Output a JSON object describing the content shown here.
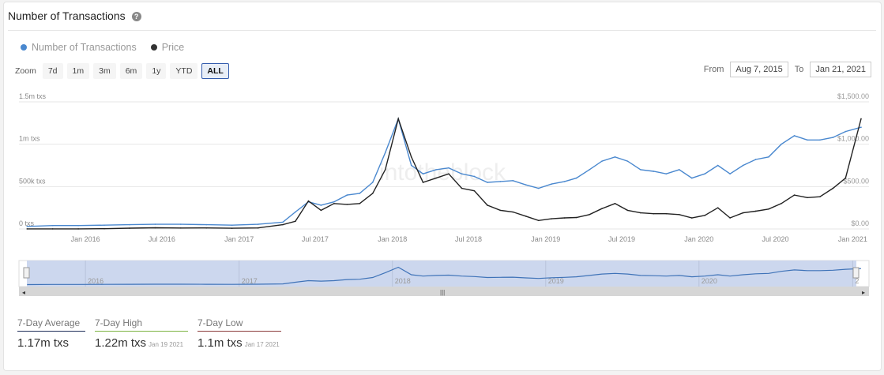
{
  "header": {
    "title": "Number of Transactions",
    "help_icon": "question-circle-icon"
  },
  "controls": {
    "zoom_label": "Zoom",
    "zoom_buttons": [
      "7d",
      "1m",
      "3m",
      "6m",
      "1y",
      "YTD",
      "ALL"
    ],
    "active_zoom": "ALL",
    "from_label": "From",
    "from_value": "Aug 7, 2015",
    "to_label": "To",
    "to_value": "Jan 21, 2021"
  },
  "watermark": "intotheblock",
  "chart_data": {
    "type": "line",
    "title": "",
    "legend_placement": "top-left",
    "grid": true,
    "x_ticks": [
      "Jan 2016",
      "Jul 2016",
      "Jan 2017",
      "Jul 2017",
      "Jan 2018",
      "Jul 2018",
      "Jan 2019",
      "Jul 2019",
      "Jan 2020",
      "Jul 2020",
      "Jan 2021"
    ],
    "y_left": {
      "ticks": [
        "0 txs",
        "500k txs",
        "1m txs",
        "1.5m txs"
      ],
      "range": [
        0,
        1500000
      ]
    },
    "y_right": {
      "ticks": [
        "$0.00",
        "$500.00",
        "$1,000.00",
        "$1,500.00"
      ],
      "range": [
        0,
        1500
      ]
    },
    "navigator_ticks": [
      "2016",
      "2017",
      "2018",
      "2019",
      "2020",
      "2"
    ],
    "x": [
      "2015-08",
      "2015-10",
      "2015-12",
      "2016-02",
      "2016-04",
      "2016-06",
      "2016-08",
      "2016-10",
      "2016-12",
      "2017-02",
      "2017-04",
      "2017-05",
      "2017-06",
      "2017-07",
      "2017-08",
      "2017-09",
      "2017-10",
      "2017-11",
      "2017-12",
      "2018-01",
      "2018-02",
      "2018-03",
      "2018-04",
      "2018-05",
      "2018-06",
      "2018-07",
      "2018-08",
      "2018-09",
      "2018-10",
      "2018-11",
      "2018-12",
      "2019-01",
      "2019-02",
      "2019-03",
      "2019-04",
      "2019-05",
      "2019-06",
      "2019-07",
      "2019-08",
      "2019-09",
      "2019-10",
      "2019-11",
      "2019-12",
      "2020-01",
      "2020-02",
      "2020-03",
      "2020-04",
      "2020-05",
      "2020-06",
      "2020-07",
      "2020-08",
      "2020-09",
      "2020-10",
      "2020-11",
      "2020-12",
      "2021-01-21"
    ],
    "series": [
      {
        "name": "Number of Transactions",
        "color": "#4a88cf",
        "values": [
          30000,
          40000,
          40000,
          45000,
          50000,
          55000,
          55000,
          50000,
          45000,
          55000,
          80000,
          200000,
          320000,
          280000,
          320000,
          400000,
          420000,
          550000,
          900000,
          1300000,
          750000,
          650000,
          700000,
          720000,
          650000,
          620000,
          550000,
          560000,
          570000,
          520000,
          480000,
          530000,
          560000,
          600000,
          700000,
          800000,
          850000,
          800000,
          700000,
          680000,
          650000,
          700000,
          600000,
          650000,
          750000,
          650000,
          750000,
          820000,
          850000,
          1000000,
          1100000,
          1050000,
          1050000,
          1080000,
          1150000,
          1200000
        ]
      },
      {
        "name": "Price",
        "color": "#222222",
        "values": [
          1,
          1,
          1,
          3,
          9,
          14,
          11,
          12,
          8,
          12,
          50,
          90,
          330,
          220,
          300,
          290,
          300,
          420,
          700,
          1300,
          850,
          550,
          600,
          650,
          480,
          450,
          280,
          220,
          200,
          150,
          100,
          120,
          130,
          135,
          170,
          240,
          300,
          220,
          190,
          180,
          180,
          170,
          130,
          160,
          250,
          130,
          190,
          210,
          235,
          300,
          400,
          370,
          380,
          480,
          600,
          1300
        ]
      }
    ]
  },
  "stats": [
    {
      "label": "7-Day Average",
      "value": "1.17m txs",
      "date": "",
      "color": "#1f2f5a"
    },
    {
      "label": "7-Day High",
      "value": "1.22m txs",
      "date": "Jan 19 2021",
      "color": "#7cb342"
    },
    {
      "label": "7-Day Low",
      "value": "1.1m txs",
      "date": "Jan 17 2021",
      "color": "#8b3a3a"
    }
  ]
}
